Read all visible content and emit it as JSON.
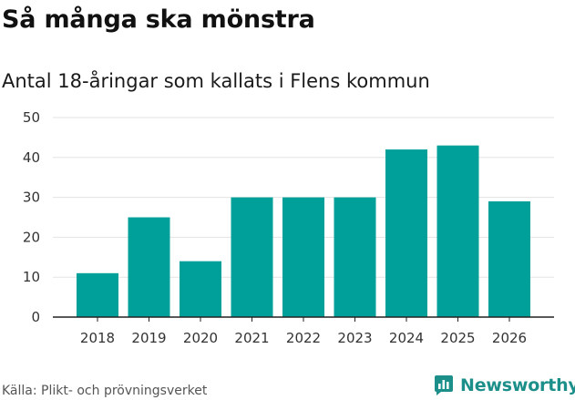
{
  "title": "Så många ska mönstra",
  "subtitle": "Antal 18-åringar som kallats i Flens kommun",
  "source": "Källa: Plikt- och prövningsverket",
  "brand": {
    "name": "Newsworthy",
    "icon": "newsworthy-chart-icon",
    "color": "#1c8f8a"
  },
  "colors": {
    "bar": "#00a09a",
    "grid": "#e3e3e3",
    "axis": "#222222"
  },
  "chart_data": {
    "type": "bar",
    "title": "Så många ska mönstra",
    "subtitle": "Antal 18-åringar som kallats i Flens kommun",
    "xlabel": "",
    "ylabel": "",
    "categories": [
      "2018",
      "2019",
      "2020",
      "2021",
      "2022",
      "2023",
      "2024",
      "2025",
      "2026"
    ],
    "values": [
      11,
      25,
      14,
      30,
      30,
      30,
      42,
      43,
      29
    ],
    "ylim": [
      0,
      50
    ],
    "yticks": [
      "0",
      "10",
      "20",
      "30",
      "40",
      "50"
    ],
    "grid": true,
    "legend": "none"
  }
}
